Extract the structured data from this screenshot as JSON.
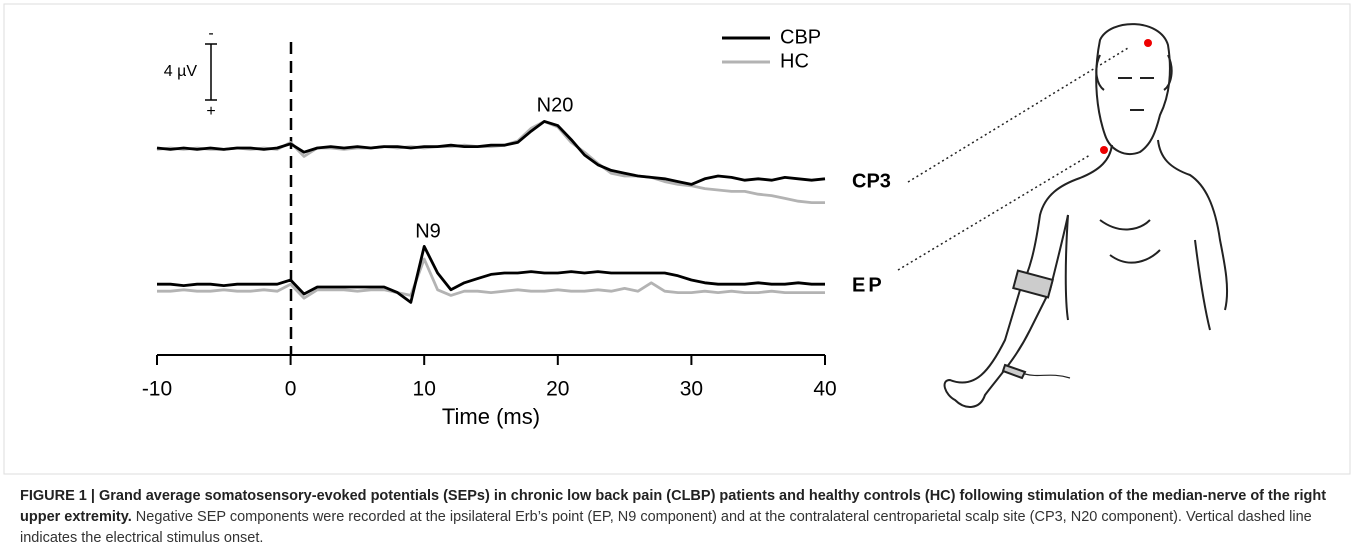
{
  "chart_data": {
    "type": "line",
    "x": [
      -10,
      -9,
      -8,
      -7,
      -6,
      -5,
      -4,
      -3,
      -2,
      -1,
      0,
      1,
      2,
      3,
      4,
      5,
      6,
      7,
      8,
      9,
      10,
      11,
      12,
      13,
      14,
      15,
      16,
      17,
      18,
      19,
      20,
      21,
      22,
      23,
      24,
      25,
      26,
      27,
      28,
      29,
      30,
      31,
      32,
      33,
      34,
      35,
      36,
      37,
      38,
      39,
      40
    ],
    "xlim": [
      -10,
      40
    ],
    "xticks": [
      -10,
      0,
      10,
      20,
      30,
      40
    ],
    "xlabel": "Time (ms)",
    "scale_bar": {
      "label": "4 µV",
      "value": 4,
      "top": "-",
      "bottom": "+"
    },
    "channels": [
      "CP3",
      "EP"
    ],
    "annotations": [
      "N20",
      "N9"
    ],
    "series": [
      {
        "name": "CBP",
        "color": "#000000",
        "CP3": [
          0,
          0.1,
          0,
          0.1,
          0,
          0.1,
          0,
          0,
          0.1,
          0,
          -0.3,
          0.3,
          0,
          -0.1,
          0,
          -0.1,
          0,
          -0.1,
          -0.1,
          0,
          -0.1,
          -0.1,
          -0.2,
          -0.1,
          -0.1,
          -0.2,
          -0.2,
          -0.4,
          -1.2,
          -1.9,
          -1.6,
          -0.6,
          0.5,
          1.2,
          1.6,
          1.8,
          2.0,
          2.1,
          2.2,
          2.4,
          2.6,
          2.2,
          2.0,
          2.1,
          2.3,
          2.2,
          2.3,
          2.1,
          2.2,
          2.3,
          2.2
        ],
        "EP": [
          -0.2,
          -0.2,
          -0.1,
          -0.2,
          -0.2,
          -0.1,
          -0.2,
          -0.2,
          -0.2,
          -0.2,
          -0.5,
          0.5,
          0,
          0,
          0,
          0,
          0,
          0,
          0.4,
          1.1,
          -2.9,
          -1.0,
          0.2,
          -0.3,
          -0.6,
          -0.9,
          -1.0,
          -1.0,
          -1.1,
          -1.0,
          -1.0,
          -1.1,
          -1.0,
          -1.1,
          -1.0,
          -1.0,
          -1.0,
          -1.0,
          -1.0,
          -0.8,
          -0.5,
          -0.3,
          -0.2,
          -0.2,
          -0.2,
          -0.3,
          -0.2,
          -0.2,
          -0.3,
          -0.2,
          -0.2
        ]
      },
      {
        "name": "HC",
        "color": "#b3b3b3",
        "CP3": [
          0.1,
          0,
          0.1,
          0,
          0.1,
          0.1,
          0,
          0.1,
          0,
          0.1,
          -0.4,
          0.6,
          0,
          0,
          0.1,
          0,
          0,
          -0.1,
          0,
          -0.1,
          0,
          -0.1,
          -0.1,
          -0.2,
          -0.1,
          -0.1,
          -0.2,
          -0.5,
          -1.4,
          -1.9,
          -1.5,
          -0.4,
          0.3,
          1.1,
          1.8,
          2.0,
          2.0,
          2.1,
          2.4,
          2.6,
          2.7,
          2.9,
          3.0,
          3.1,
          3.1,
          3.3,
          3.4,
          3.6,
          3.8,
          3.9,
          3.9
        ],
        "EP": [
          0.3,
          0.3,
          0.2,
          0.3,
          0.3,
          0.2,
          0.3,
          0.3,
          0.2,
          0.3,
          -0.2,
          0.8,
          0.2,
          0.2,
          0.2,
          0.3,
          0.2,
          0.2,
          0.4,
          0.6,
          -2.0,
          0.2,
          0.6,
          0.3,
          0.3,
          0.4,
          0.3,
          0.2,
          0.3,
          0.3,
          0.2,
          0.3,
          0.3,
          0.2,
          0.3,
          0.1,
          0.3,
          -0.3,
          0.3,
          0.4,
          0.4,
          0.3,
          0.4,
          0.3,
          0.4,
          0.4,
          0.3,
          0.4,
          0.4,
          0.4,
          0.4
        ]
      }
    ]
  },
  "caption": {
    "bold": "FIGURE 1 | Grand average somatosensory-evoked potentials (SEPs) in chronic low back pain (CLBP) patients and healthy controls (HC) following stimulation of the median-nerve of the right upper extremity.",
    "text": " Negative SEP components were recorded at the ipsilateral Erb’s point (EP, N9 component) and at the contralateral centroparietal scalp site (CP3, N20 component). Vertical dashed line indicates the electrical stimulus onset."
  }
}
